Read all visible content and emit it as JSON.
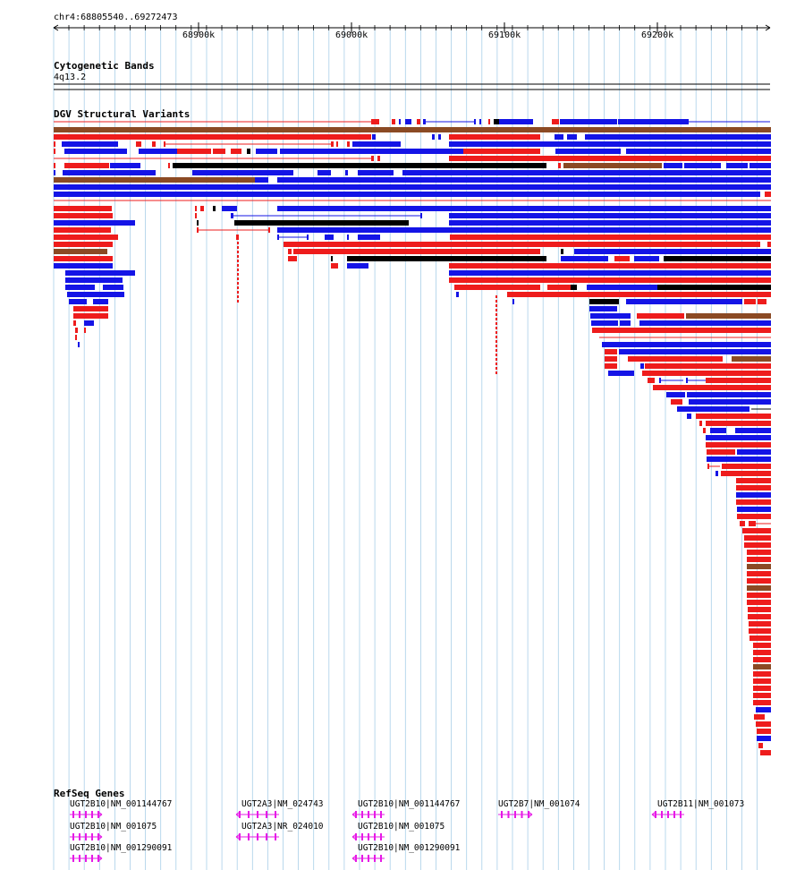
{
  "browser": {
    "location": "chr4:68805540..69272473",
    "ruler_ticks": [
      "68900k",
      "69000k",
      "69100k",
      "69200k"
    ]
  },
  "tracks": {
    "cytoband": {
      "title": "Cytogenetic Bands",
      "band_label": "4q13.2"
    },
    "dgv": {
      "title": "DGV Structural Variants"
    },
    "refseq": {
      "title": "RefSeq Genes",
      "genes": [
        {
          "label": "UGT2B10|NM_001144767",
          "strand": "+"
        },
        {
          "label": "UGT2B10|NM_001075",
          "strand": "+"
        },
        {
          "label": "UGT2B10|NM_001290091",
          "strand": "+"
        },
        {
          "label": "UGT2A3|NM_024743",
          "strand": "-"
        },
        {
          "label": "UGT2A3|NR_024010",
          "strand": "-"
        },
        {
          "label": "UGT2B10|NM_001144767",
          "strand": "-"
        },
        {
          "label": "UGT2B10|NM_001075",
          "strand": "-"
        },
        {
          "label": "UGT2B10|NM_001290091",
          "strand": "-"
        },
        {
          "label": "UGT2B7|NM_001074",
          "strand": "+"
        },
        {
          "label": "UGT2B11|NM_001073",
          "strand": "-"
        }
      ]
    }
  },
  "colors": {
    "loss": "#ee1c1c",
    "gain": "#1414e6",
    "inversion": "#000000",
    "complex": "#8b4a24",
    "gene": "#e619e6",
    "grid": "#a9cfe8"
  }
}
